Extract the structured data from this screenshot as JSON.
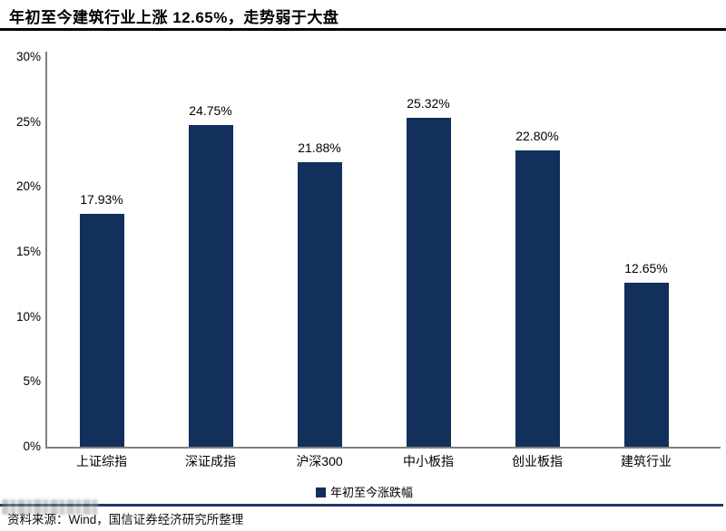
{
  "title": "年初至今建筑行业上涨 12.65%，走势弱于大盘",
  "source_note": "资料来源：Wind，国信证券经济研究所整理",
  "legend": {
    "marker": "■",
    "label": "年初至今涨跌幅"
  },
  "colors": {
    "bar": "#132F5C",
    "axis": "#808080",
    "separator": "#1F3864",
    "title_rule": "#000000"
  },
  "chart_data": {
    "type": "bar",
    "title": "年初至今建筑行业上涨 12.65%，走势弱于大盘",
    "categories": [
      "上证综指",
      "深证成指",
      "沪深300",
      "中小板指",
      "创业板指",
      "建筑行业"
    ],
    "values": [
      17.93,
      24.75,
      21.88,
      25.32,
      22.8,
      12.65
    ],
    "value_labels": [
      "17.93%",
      "24.75%",
      "21.88%",
      "25.32%",
      "22.80%",
      "12.65%"
    ],
    "series_name": "年初至今涨跌幅",
    "xlabel": "",
    "ylabel": "",
    "ylim": [
      0,
      30
    ],
    "ytick_step": 5,
    "ytick_labels": [
      "0%",
      "5%",
      "10%",
      "15%",
      "20%",
      "25%",
      "30%"
    ],
    "grid": false,
    "legend_position": "bottom"
  }
}
